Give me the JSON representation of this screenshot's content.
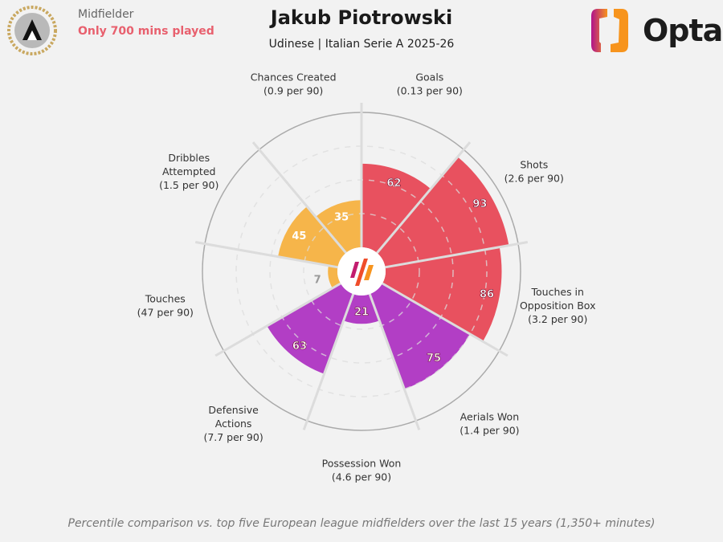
{
  "header": {
    "position": "Midfielder",
    "note": "Only 700 mins played",
    "title": "Jakub Piotrowski",
    "subtitle": "Udinese | Italian Serie A 2025-26",
    "brand": "Opta"
  },
  "footer": "Percentile comparison vs. top five European league midfielders over the last 15 years (1,350+ minutes)",
  "chart_data": {
    "type": "pizza",
    "scale": [
      0,
      100
    ],
    "gridlines": [
      25,
      50,
      75
    ],
    "colors": {
      "attacking": "#e8515f",
      "possession": "#f6b54a",
      "defending": "#b23ec5"
    },
    "slices": [
      {
        "label": "Goals",
        "sub": "(0.13 per 90)",
        "value": 62,
        "group": "attacking"
      },
      {
        "label": "Shots",
        "sub": "(2.6 per 90)",
        "value": 93,
        "group": "attacking"
      },
      {
        "label": "Touches in|Opposition Box",
        "sub": "(3.2 per 90)",
        "value": 86,
        "group": "attacking"
      },
      {
        "label": "Aerials Won",
        "sub": "(1.4 per 90)",
        "value": 75,
        "group": "defending"
      },
      {
        "label": "Possession Won",
        "sub": "(4.6 per 90)",
        "value": 21,
        "group": "defending"
      },
      {
        "label": "Defensive|Actions",
        "sub": "(7.7 per 90)",
        "value": 63,
        "group": "defending"
      },
      {
        "label": "Touches",
        "sub": "(47 per 90)",
        "value": 7,
        "group": "possession"
      },
      {
        "label": "Dribbles|Attempted",
        "sub": "(1.5 per 90)",
        "value": 45,
        "group": "possession"
      },
      {
        "label": "Chances Created",
        "sub": "(0.9 per 90)",
        "value": 35,
        "group": "possession"
      }
    ]
  }
}
